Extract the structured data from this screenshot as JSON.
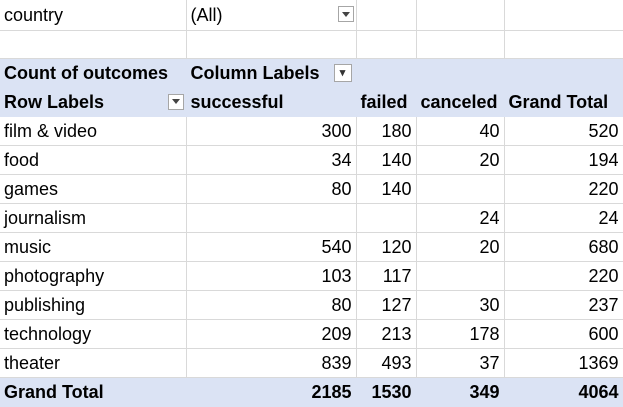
{
  "filter": {
    "field": "country",
    "value": "(All)"
  },
  "pivot": {
    "corner_label": "Count of outcomes",
    "column_labels_header": "Column Labels",
    "row_labels_header": "Row Labels",
    "columns": [
      "successful",
      "failed",
      "canceled",
      "Grand Total"
    ],
    "rows": [
      {
        "label": "film & video",
        "values": [
          "300",
          "180",
          "40",
          "520"
        ]
      },
      {
        "label": "food",
        "values": [
          "34",
          "140",
          "20",
          "194"
        ]
      },
      {
        "label": "games",
        "values": [
          "80",
          "140",
          "",
          "220"
        ]
      },
      {
        "label": "journalism",
        "values": [
          "",
          "",
          "24",
          "24"
        ]
      },
      {
        "label": "music",
        "values": [
          "540",
          "120",
          "20",
          "680"
        ]
      },
      {
        "label": "photography",
        "values": [
          "103",
          "117",
          "",
          "220"
        ]
      },
      {
        "label": "publishing",
        "values": [
          "80",
          "127",
          "30",
          "237"
        ]
      },
      {
        "label": "technology",
        "values": [
          "209",
          "213",
          "178",
          "600"
        ]
      },
      {
        "label": "theater",
        "values": [
          "839",
          "493",
          "37",
          "1369"
        ]
      }
    ],
    "grand_total": {
      "label": "Grand Total",
      "values": [
        "2185",
        "1530",
        "349",
        "4064"
      ]
    }
  },
  "colors": {
    "header_bg": "#dbe3f4",
    "grid": "#d9d9d9"
  }
}
